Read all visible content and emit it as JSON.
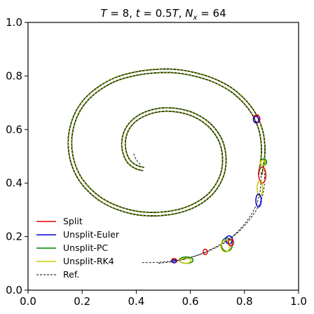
{
  "chart_data": {
    "type": "line",
    "title_parts": [
      "T",
      " = 8, ",
      "t",
      " = 0.5",
      "T",
      ", ",
      "N",
      "x",
      " = 64"
    ],
    "xlabel": "",
    "ylabel": "",
    "xlim": [
      0.0,
      1.0
    ],
    "ylim": [
      0.0,
      1.0
    ],
    "xticks": [
      0.0,
      0.2,
      0.4,
      0.6,
      0.8,
      1.0
    ],
    "yticks": [
      0.0,
      0.2,
      0.4,
      0.6,
      0.8,
      1.0
    ],
    "xtick_labels": [
      "0.0",
      "0.2",
      "0.4",
      "0.6",
      "0.8",
      "1.0"
    ],
    "ytick_labels": [
      "0.0",
      "0.2",
      "0.4",
      "0.6",
      "0.8",
      "1.0"
    ],
    "grid": false,
    "legend_position": "lower-left",
    "series": [
      {
        "name": "Split",
        "color": "#e00000",
        "style": "solid"
      },
      {
        "name": "Unsplit-Euler",
        "color": "#0000dd",
        "style": "solid"
      },
      {
        "name": "Unsplit-PC",
        "color": "#008000",
        "style": "solid"
      },
      {
        "name": "Unsplit-RK4",
        "color": "#c8c800",
        "style": "solid"
      },
      {
        "name": "Ref.",
        "color": "#000000",
        "style": "dashed"
      }
    ],
    "spiral": {
      "outer": [
        [
          0.858,
          0.432
        ],
        [
          0.868,
          0.495
        ],
        [
          0.868,
          0.552
        ],
        [
          0.858,
          0.605
        ],
        [
          0.835,
          0.658
        ],
        [
          0.8,
          0.705
        ],
        [
          0.752,
          0.748
        ],
        [
          0.69,
          0.782
        ],
        [
          0.62,
          0.805
        ],
        [
          0.545,
          0.818
        ],
        [
          0.47,
          0.818
        ],
        [
          0.395,
          0.808
        ],
        [
          0.325,
          0.788
        ],
        [
          0.265,
          0.755
        ],
        [
          0.215,
          0.712
        ],
        [
          0.18,
          0.66
        ],
        [
          0.16,
          0.6
        ],
        [
          0.155,
          0.54
        ],
        [
          0.165,
          0.478
        ],
        [
          0.19,
          0.42
        ],
        [
          0.228,
          0.373
        ],
        [
          0.275,
          0.335
        ],
        [
          0.33,
          0.308
        ],
        [
          0.392,
          0.29
        ],
        [
          0.455,
          0.284
        ],
        [
          0.52,
          0.288
        ],
        [
          0.58,
          0.302
        ],
        [
          0.632,
          0.326
        ],
        [
          0.675,
          0.36
        ],
        [
          0.705,
          0.402
        ],
        [
          0.722,
          0.448
        ],
        [
          0.725,
          0.5
        ],
        [
          0.715,
          0.55
        ],
        [
          0.69,
          0.595
        ],
        [
          0.652,
          0.632
        ],
        [
          0.605,
          0.658
        ],
        [
          0.55,
          0.672
        ],
        [
          0.495,
          0.674
        ],
        [
          0.445,
          0.663
        ],
        [
          0.403,
          0.642
        ],
        [
          0.373,
          0.612
        ],
        [
          0.357,
          0.577
        ],
        [
          0.353,
          0.54
        ],
        [
          0.36,
          0.505
        ],
        [
          0.375,
          0.478
        ],
        [
          0.4,
          0.46
        ],
        [
          0.427,
          0.452
        ]
      ],
      "offsets_ref": [
        -0.0065,
        0.0065
      ],
      "tail_in": [
        [
          0.415,
          0.47
        ],
        [
          0.4,
          0.488
        ],
        [
          0.39,
          0.51
        ]
      ],
      "tail_out": [
        [
          0.875,
          0.45
        ],
        [
          0.872,
          0.38
        ],
        [
          0.855,
          0.32
        ],
        [
          0.82,
          0.265
        ],
        [
          0.775,
          0.215
        ],
        [
          0.715,
          0.17
        ],
        [
          0.64,
          0.135
        ],
        [
          0.56,
          0.113
        ],
        [
          0.48,
          0.104
        ],
        [
          0.42,
          0.103
        ]
      ],
      "tail_out_2": [
        [
          0.862,
          0.44
        ],
        [
          0.858,
          0.37
        ],
        [
          0.84,
          0.31
        ],
        [
          0.806,
          0.255
        ],
        [
          0.76,
          0.205
        ],
        [
          0.7,
          0.165
        ],
        [
          0.63,
          0.132
        ],
        [
          0.555,
          0.11
        ],
        [
          0.48,
          0.1
        ]
      ]
    },
    "blobs": [
      {
        "series": "Split",
        "cx": 0.845,
        "cy": 0.64,
        "rx": 0.012,
        "ry": 0.015
      },
      {
        "series": "Unsplit-Euler",
        "cx": 0.843,
        "cy": 0.637,
        "rx": 0.01,
        "ry": 0.012
      },
      {
        "series": "Unsplit-PC",
        "cx": 0.87,
        "cy": 0.478,
        "rx": 0.012,
        "ry": 0.012
      },
      {
        "series": "Unsplit-RK4",
        "cx": 0.868,
        "cy": 0.476,
        "rx": 0.01,
        "ry": 0.01
      },
      {
        "series": "Split",
        "cx": 0.866,
        "cy": 0.43,
        "rx": 0.013,
        "ry": 0.03
      },
      {
        "series": "Unsplit-RK4",
        "cx": 0.857,
        "cy": 0.38,
        "rx": 0.01,
        "ry": 0.03
      },
      {
        "series": "Unsplit-Euler",
        "cx": 0.852,
        "cy": 0.335,
        "rx": 0.01,
        "ry": 0.024
      },
      {
        "series": "Unsplit-PC",
        "cx": 0.735,
        "cy": 0.17,
        "rx": 0.02,
        "ry": 0.025
      },
      {
        "series": "Unsplit-Euler",
        "cx": 0.743,
        "cy": 0.188,
        "rx": 0.013,
        "ry": 0.015
      },
      {
        "series": "Unsplit-RK4",
        "cx": 0.73,
        "cy": 0.165,
        "rx": 0.017,
        "ry": 0.022
      },
      {
        "series": "Split",
        "cx": 0.75,
        "cy": 0.178,
        "rx": 0.01,
        "ry": 0.012
      },
      {
        "series": "Unsplit-PC",
        "cx": 0.585,
        "cy": 0.112,
        "rx": 0.025,
        "ry": 0.012
      },
      {
        "series": "Unsplit-RK4",
        "cx": 0.582,
        "cy": 0.11,
        "rx": 0.02,
        "ry": 0.01
      },
      {
        "series": "Split",
        "cx": 0.655,
        "cy": 0.143,
        "rx": 0.008,
        "ry": 0.01
      },
      {
        "series": "Split",
        "cx": 0.54,
        "cy": 0.11,
        "rx": 0.01,
        "ry": 0.008
      },
      {
        "series": "Unsplit-Euler",
        "cx": 0.54,
        "cy": 0.108,
        "rx": 0.007,
        "ry": 0.006
      }
    ]
  }
}
